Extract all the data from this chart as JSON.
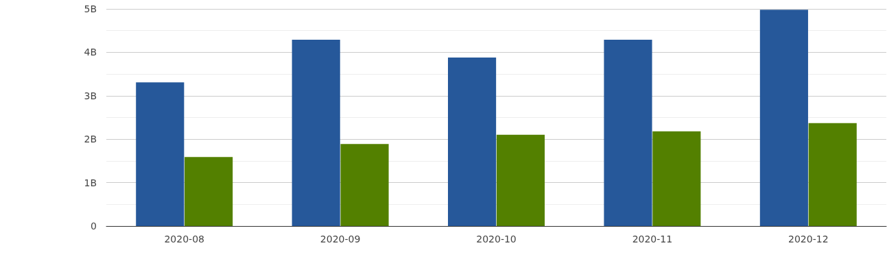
{
  "chart_data": {
    "type": "bar",
    "categories": [
      "2020-08",
      "2020-09",
      "2020-10",
      "2020-11",
      "2020-12"
    ],
    "series": [
      {
        "color": "#26589a",
        "values": [
          3.31,
          4.29,
          3.88,
          4.29,
          4.98
        ]
      },
      {
        "color": "#538000",
        "values": [
          1.59,
          1.89,
          2.1,
          2.18,
          2.37
        ]
      }
    ],
    "ylim": [
      0,
      5
    ],
    "yticks": [
      0,
      {
        "value": 0.5,
        "label": null
      },
      {
        "value": 1,
        "label": "1B"
      },
      {
        "value": 1.5,
        "label": null
      },
      {
        "value": 2,
        "label": "2B"
      },
      {
        "value": 2.5,
        "label": null
      },
      {
        "value": 3,
        "label": "3B"
      },
      {
        "value": 3.5,
        "label": null
      },
      {
        "value": 4,
        "label": "4B"
      },
      {
        "value": 4.5,
        "label": null
      },
      {
        "value": 5,
        "label": "5B"
      }
    ],
    "grid": "y"
  }
}
